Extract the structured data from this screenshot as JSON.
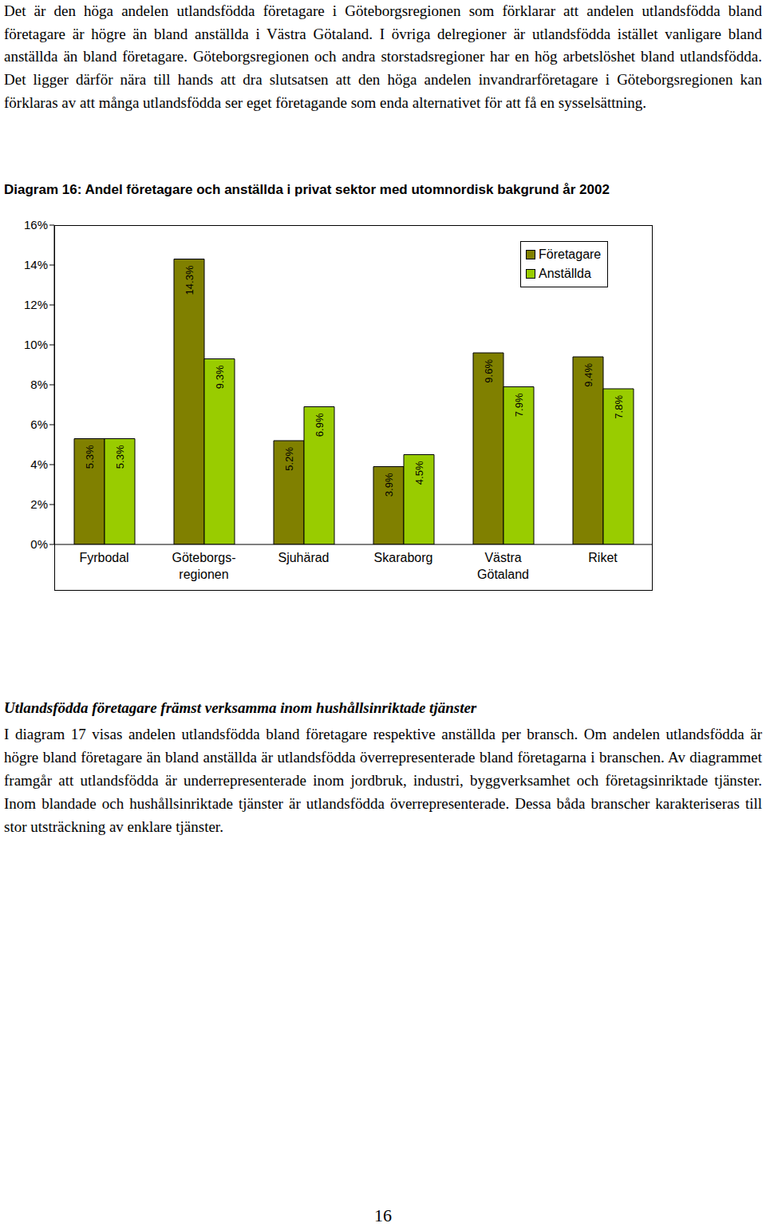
{
  "page": {
    "paragraph_1": "Det är den höga andelen utlandsfödda företagare i Göteborgsregionen som förklarar att andelen utlandsfödda bland företagare är högre än bland anställda i Västra Götaland. I övriga delregioner är utlandsfödda istället vanligare bland anställda än bland företagare. Göteborgsregionen och andra storstadsregioner har en hög arbetslöshet bland utlandsfödda. Det ligger därför nära till hands att dra slutsatsen att den höga andelen invandrarföretagare i Göteborgsregionen kan förklaras av att många utlandsfödda ser eget företagande som enda alternativet för att få en sysselsättning.",
    "heading": "Utlandsfödda företagare främst verksamma inom hushållsinriktade tjänster",
    "paragraph_2": "I diagram 17 visas andelen utlandsfödda bland företagare respektive anställda per bransch. Om andelen utlandsfödda är högre bland företagare än bland anställda är utlandsfödda överrepresenterade bland företagarna i branschen. Av diagrammet framgår att utlandsfödda är underrepresenterade inom jordbruk, industri, byggverksamhet och företagsinriktade tjänster. Inom blandade och hushållsinriktade tjänster är utlandsfödda överrepresenterade. Dessa båda branscher karakteriseras till stor utsträckning av enklare tjänster.",
    "page_number": "16"
  },
  "chart_data": {
    "type": "bar",
    "title": "Diagram 16: Andel företagare och anställda i privat sektor med utomnordisk bakgrund år 2002",
    "categories": [
      "Fyrbodal",
      "Göteborgs-\nregionen",
      "Sjuhärad",
      "Skaraborg",
      "Västra\nGötaland",
      "Riket"
    ],
    "series": [
      {
        "name": "Företagare",
        "color": "#808000",
        "values": [
          5.3,
          14.3,
          5.2,
          3.9,
          9.6,
          9.4
        ],
        "value_labels": [
          "5.3%",
          "14.3%",
          "5.2%",
          "3.9%",
          "9.6%",
          "9.4%"
        ]
      },
      {
        "name": "Anställda",
        "color": "#99cc00",
        "values": [
          5.3,
          9.3,
          6.9,
          4.5,
          7.9,
          7.8
        ],
        "value_labels": [
          "5.3%",
          "9.3%",
          "6.9%",
          "4.5%",
          "7.9%",
          "7.8%"
        ]
      }
    ],
    "ylim": [
      0,
      16
    ],
    "yticks": [
      {
        "value": 0,
        "label": "0%"
      },
      {
        "value": 2,
        "label": "2%"
      },
      {
        "value": 4,
        "label": "4%"
      },
      {
        "value": 6,
        "label": "6%"
      },
      {
        "value": 8,
        "label": "8%"
      },
      {
        "value": 10,
        "label": "10%"
      },
      {
        "value": 12,
        "label": "12%"
      },
      {
        "value": 14,
        "label": "14%"
      },
      {
        "value": 16,
        "label": "16%"
      }
    ],
    "grid": false,
    "legend": "upper right",
    "data_labels": true
  }
}
